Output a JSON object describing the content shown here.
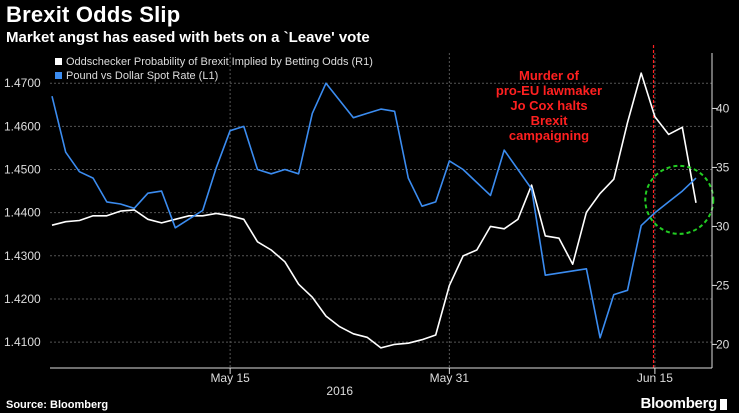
{
  "header": {
    "title": "Brexit Odds Slip",
    "subtitle": "Market angst has eased with bets on a `Leave' vote"
  },
  "footer": {
    "source": "Source: Bloomberg",
    "brand": "Bloomberg"
  },
  "colors": {
    "background": "#000000",
    "odds_line": "#ffffff",
    "pound_line": "#3b8cf0",
    "annotation": "#ff2020",
    "event_line": "#ff2020",
    "highlight_circle": "#22cc22",
    "gridline": "#555555",
    "axis_text": "#dddddd"
  },
  "chart_data": {
    "type": "line",
    "title": "Brexit Odds Slip",
    "subtitle": "Market angst has eased with bets on a `Leave' vote",
    "xlabel": "2016",
    "x_range": [
      1,
      48
    ],
    "x_ticks": [
      {
        "value": 14,
        "label": "May 15"
      },
      {
        "value": 30,
        "label": "May 31"
      },
      {
        "value": 45,
        "label": "Jun 15"
      }
    ],
    "grid": true,
    "legend_position": "top-left",
    "y_left": {
      "label": "Pound vs Dollar Spot Rate",
      "range": [
        1.404,
        1.477
      ],
      "ticks": [
        1.41,
        1.42,
        1.43,
        1.44,
        1.45,
        1.46,
        1.47
      ],
      "tick_labels": [
        "1.4100",
        "1.4200",
        "1.4300",
        "1.4400",
        "1.4500",
        "1.4600",
        "1.4700"
      ]
    },
    "y_right": {
      "label": "Oddschecker Probability of Brexit Implied by Betting Odds",
      "range": [
        18,
        44.7
      ],
      "ticks": [
        20,
        25,
        30,
        35,
        40
      ],
      "tick_labels": [
        "20",
        "25",
        "30",
        "35",
        "40"
      ]
    },
    "series": [
      {
        "name": "Oddschecker Probability of Brexit Implied by Betting Odds (R1)",
        "axis": "right",
        "x": [
          1,
          2,
          3,
          4,
          5,
          6,
          7,
          8,
          9,
          10,
          11,
          12,
          13,
          14,
          15,
          16,
          17,
          18,
          19,
          20,
          21,
          22,
          23,
          24,
          25,
          26,
          27,
          28,
          29,
          30,
          31,
          32,
          33,
          34,
          35,
          36,
          37,
          38,
          39,
          40,
          41,
          42,
          43,
          44,
          45,
          46,
          47,
          48
        ],
        "values": [
          30.1,
          30.4,
          30.5,
          30.9,
          30.9,
          31.3,
          31.4,
          30.6,
          30.3,
          30.6,
          30.9,
          30.9,
          31.1,
          30.9,
          30.6,
          28.7,
          28.0,
          27.0,
          25.1,
          24.0,
          22.4,
          21.5,
          20.9,
          20.6,
          19.7,
          20.0,
          20.1,
          20.4,
          20.8,
          25.0,
          27.5,
          28.0,
          30.0,
          29.8,
          30.6,
          33.5,
          29.2,
          29.0,
          26.8,
          31.2,
          32.8,
          34.0,
          38.8,
          43.0,
          39.3,
          37.8,
          38.4,
          32.0
        ]
      },
      {
        "name": "Pound vs Dollar Spot Rate (L1)",
        "axis": "left",
        "x": [
          1,
          2,
          3,
          4,
          5,
          6,
          7,
          8,
          9,
          10,
          11,
          12,
          13,
          14,
          15,
          16,
          17,
          18,
          19,
          20,
          21,
          22,
          23,
          24,
          25,
          26,
          27,
          28,
          29,
          30,
          31,
          32,
          33,
          34,
          35,
          36,
          37,
          38,
          39,
          40,
          41,
          42,
          43,
          44,
          45,
          46,
          47,
          48
        ],
        "values": [
          1.467,
          1.454,
          1.4495,
          1.448,
          1.4425,
          1.442,
          1.441,
          1.4445,
          1.445,
          1.4365,
          1.4385,
          1.4405,
          1.4505,
          1.459,
          1.46,
          1.45,
          1.449,
          1.45,
          1.449,
          1.463,
          1.47,
          1.466,
          1.462,
          1.463,
          1.464,
          1.4635,
          1.448,
          1.4415,
          1.4425,
          1.452,
          1.45,
          1.447,
          1.444,
          1.4545,
          1.45,
          1.4455,
          1.4255,
          1.426,
          1.4265,
          1.427,
          1.411,
          1.421,
          1.422,
          1.437,
          1.44,
          1.4425,
          1.445,
          1.448
        ]
      }
    ],
    "annotations": [
      {
        "text": [
          "Murder of",
          "pro-EU lawmaker",
          "Jo Cox halts",
          "Brexit",
          "campaigning"
        ],
        "x": 44.9,
        "type": "vertical-line"
      }
    ]
  }
}
